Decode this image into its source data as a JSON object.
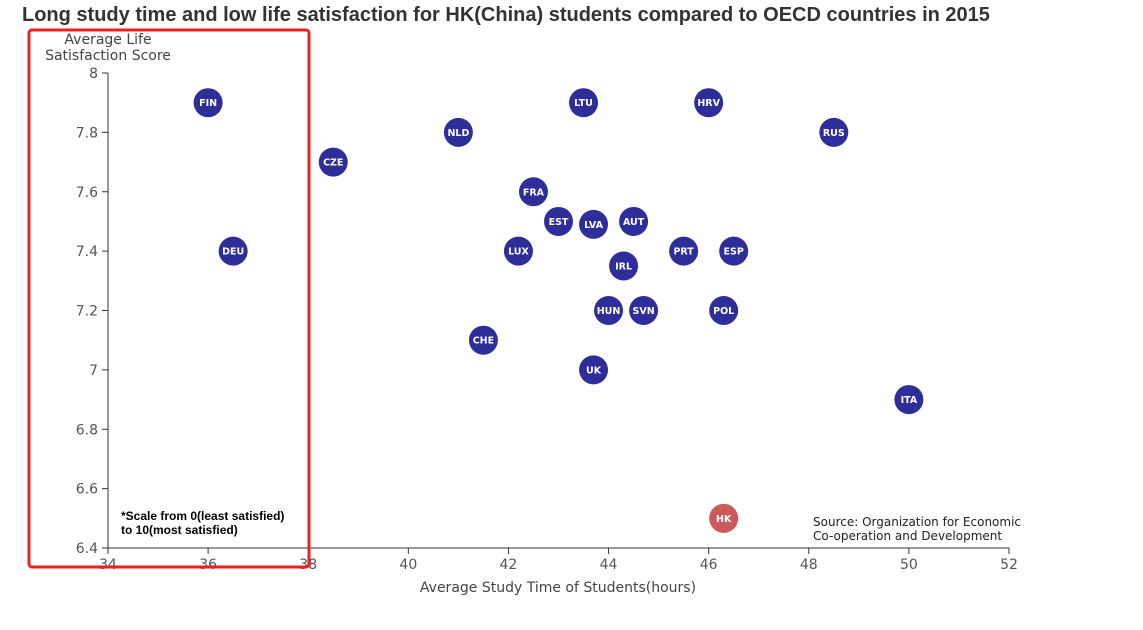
{
  "chart_data": {
    "type": "scatter",
    "title": "Long study time and low life satisfaction for HK(China) students compared to OECD countries in 2015",
    "xlabel": "Average Study Time of Students(hours)",
    "ylabel": [
      "Average Life",
      "Satisfaction Score"
    ],
    "xlim": [
      34,
      52
    ],
    "ylim": [
      6.4,
      8
    ],
    "xticks": [
      34,
      36,
      38,
      40,
      42,
      44,
      46,
      48,
      50,
      52
    ],
    "yticks": [
      6.4,
      6.6,
      6.8,
      7,
      7.2,
      7.4,
      7.6,
      7.8,
      8
    ],
    "note": [
      "*Scale from 0(least satisfied)",
      "to 10(most satisfied)"
    ],
    "source": [
      "Source: Organization for Economic",
      "Co-operation and Development"
    ],
    "colors": {
      "oecd": "#2e2e9a",
      "highlight": "#cc5a5a",
      "axis": "#333333",
      "annotation_box": "#e8231b"
    },
    "grid": false,
    "points": [
      {
        "label": "FIN",
        "x": 36.0,
        "y": 7.9
      },
      {
        "label": "DEU",
        "x": 36.5,
        "y": 7.4
      },
      {
        "label": "CZE",
        "x": 38.5,
        "y": 7.7
      },
      {
        "label": "NLD",
        "x": 41.0,
        "y": 7.8
      },
      {
        "label": "CHE",
        "x": 41.5,
        "y": 7.1
      },
      {
        "label": "LUX",
        "x": 42.2,
        "y": 7.4
      },
      {
        "label": "FRA",
        "x": 42.5,
        "y": 7.6
      },
      {
        "label": "EST",
        "x": 43.0,
        "y": 7.5
      },
      {
        "label": "LTU",
        "x": 43.5,
        "y": 7.9
      },
      {
        "label": "LVA",
        "x": 43.7,
        "y": 7.49
      },
      {
        "label": "UK",
        "x": 43.7,
        "y": 7.0
      },
      {
        "label": "HUN",
        "x": 44.0,
        "y": 7.2
      },
      {
        "label": "IRL",
        "x": 44.3,
        "y": 7.35
      },
      {
        "label": "AUT",
        "x": 44.5,
        "y": 7.5
      },
      {
        "label": "SVN",
        "x": 44.7,
        "y": 7.2
      },
      {
        "label": "PRT",
        "x": 45.5,
        "y": 7.4
      },
      {
        "label": "HRV",
        "x": 46.0,
        "y": 7.9
      },
      {
        "label": "POL",
        "x": 46.3,
        "y": 7.2
      },
      {
        "label": "HK",
        "x": 46.3,
        "y": 6.5,
        "highlight": true
      },
      {
        "label": "ESP",
        "x": 46.5,
        "y": 7.4
      },
      {
        "label": "RUS",
        "x": 48.5,
        "y": 7.8
      },
      {
        "label": "ITA",
        "x": 50.0,
        "y": 6.9
      }
    ]
  }
}
